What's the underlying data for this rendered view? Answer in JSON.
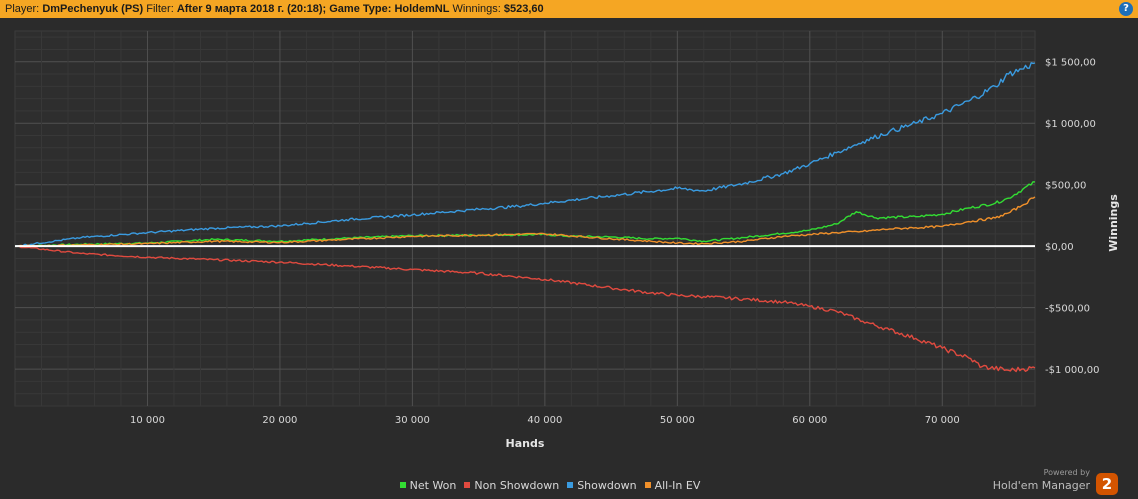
{
  "header": {
    "player_label": "Player:",
    "player_value": "DmPechenyuk (PS)",
    "filter_label": "Filter:",
    "filter_value": "After 9 марта 2018 г. (20:18); Game Type: HoldemNL",
    "winnings_label": "Winnings:",
    "winnings_value": "$523,60",
    "help_icon": "?"
  },
  "brand": {
    "powered": "Powered by",
    "name": "Hold'em Manager",
    "badge": "2"
  },
  "colors": {
    "background": "#2b2b2b",
    "header": "#f5a623",
    "grid": "#444444",
    "zero_line": "#ffffff"
  },
  "chart_data": {
    "type": "line",
    "title": "",
    "xlabel": "Hands",
    "ylabel": "Winnings",
    "xlim": [
      0,
      77000
    ],
    "ylim": [
      -1300,
      1750
    ],
    "x_ticks": [
      10000,
      20000,
      30000,
      40000,
      50000,
      60000,
      70000
    ],
    "x_tick_labels": [
      "10 000",
      "20 000",
      "30 000",
      "40 000",
      "50 000",
      "60 000",
      "70 000"
    ],
    "y_ticks": [
      1500,
      1000,
      500,
      0,
      -500,
      -1000
    ],
    "y_tick_labels": [
      "$1 500,00",
      "$1 000,00",
      "$500,00",
      "$0,00",
      "-$500,00",
      "-$1 000,00"
    ],
    "grid": true,
    "legend_position": "bottom",
    "series": [
      {
        "name": "Net Won",
        "color": "#33dd33",
        "x": [
          0,
          5000,
          10000,
          15000,
          20000,
          25000,
          30000,
          35000,
          40000,
          42000,
          45000,
          48000,
          50000,
          52000,
          55000,
          58000,
          60000,
          62000,
          63500,
          65000,
          68000,
          70000,
          72000,
          74000,
          75000,
          77000
        ],
        "y": [
          0,
          15,
          25,
          55,
          40,
          65,
          85,
          90,
          95,
          80,
          75,
          60,
          65,
          40,
          70,
          105,
          130,
          180,
          280,
          230,
          240,
          260,
          310,
          350,
          390,
          523
        ]
      },
      {
        "name": "Non Showdown",
        "color": "#e04a3f",
        "x": [
          0,
          5000,
          10000,
          15000,
          20000,
          25000,
          30000,
          35000,
          40000,
          45000,
          48000,
          50000,
          52000,
          55000,
          58000,
          60000,
          62000,
          64000,
          66000,
          68000,
          70000,
          72000,
          73000,
          75000,
          76000,
          77000
        ],
        "y": [
          0,
          -60,
          -90,
          -110,
          -130,
          -160,
          -190,
          -220,
          -270,
          -340,
          -380,
          -400,
          -410,
          -430,
          -455,
          -490,
          -530,
          -610,
          -680,
          -750,
          -830,
          -910,
          -980,
          -1010,
          -1000,
          -990
        ]
      },
      {
        "name": "Showdown",
        "color": "#3a9be0",
        "x": [
          0,
          5000,
          10000,
          15000,
          20000,
          25000,
          30000,
          35000,
          38000,
          40000,
          45000,
          50000,
          52000,
          55000,
          58000,
          60000,
          62000,
          64000,
          66000,
          68000,
          70000,
          72000,
          74000,
          75000,
          76000,
          77000
        ],
        "y": [
          0,
          70,
          110,
          145,
          165,
          215,
          255,
          300,
          325,
          350,
          410,
          470,
          450,
          510,
          590,
          670,
          760,
          850,
          930,
          1000,
          1080,
          1180,
          1300,
          1400,
          1440,
          1490
        ]
      },
      {
        "name": "All-In EV",
        "color": "#f0902a",
        "x": [
          0,
          5000,
          10000,
          15000,
          20000,
          25000,
          30000,
          35000,
          40000,
          45000,
          48000,
          50000,
          52000,
          55000,
          58000,
          60000,
          62000,
          64000,
          66000,
          68000,
          70000,
          72000,
          74000,
          75000,
          76000,
          77000
        ],
        "y": [
          0,
          10,
          20,
          40,
          30,
          55,
          80,
          90,
          100,
          60,
          40,
          25,
          20,
          40,
          80,
          95,
          110,
          120,
          140,
          150,
          160,
          200,
          230,
          270,
          330,
          400
        ]
      }
    ]
  }
}
